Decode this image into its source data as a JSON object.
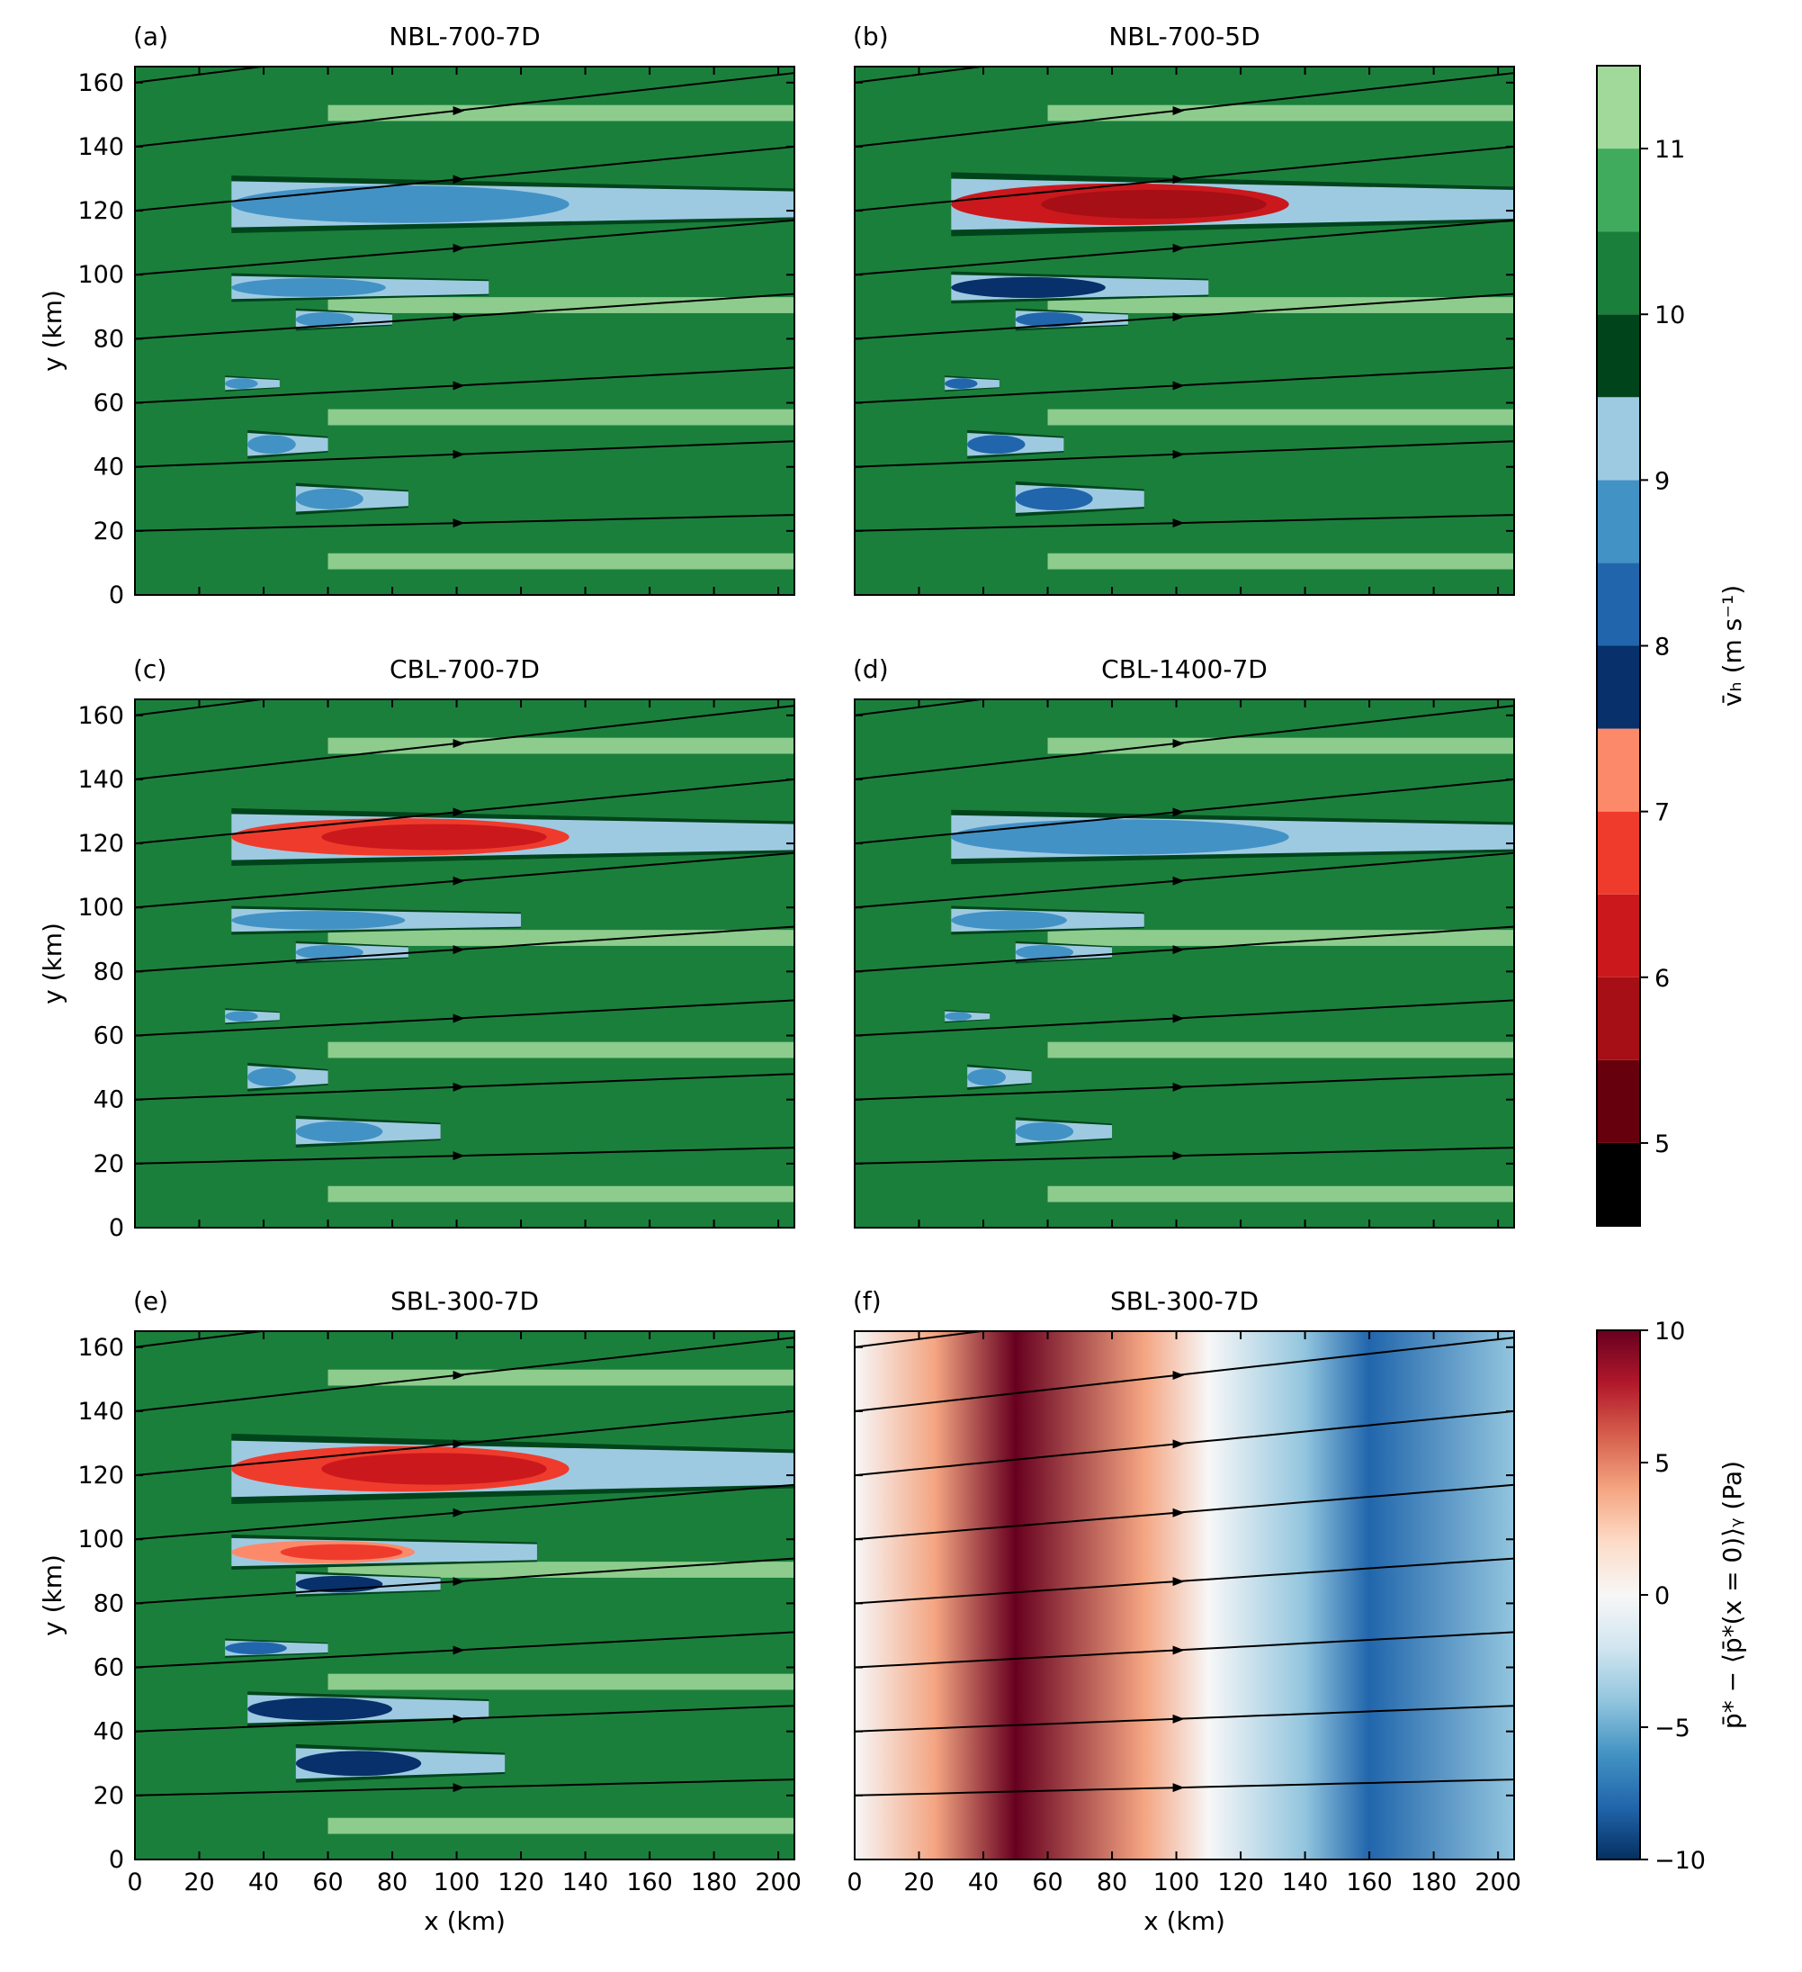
{
  "chart_data": [
    {
      "type": "heatmap",
      "panel": "(a)",
      "title": "NBL-700-7D",
      "xlabel": "",
      "ylabel": "y (km)",
      "xlim": [
        0,
        205
      ],
      "ylim": [
        0,
        165
      ],
      "x_ticks": [
        0,
        20,
        40,
        60,
        80,
        100,
        120,
        140,
        160,
        180,
        200
      ],
      "y_ticks": [
        0,
        20,
        40,
        60,
        80,
        100,
        120,
        140,
        160
      ],
      "background_level": 10,
      "streamline_y0": [
        20,
        40,
        60,
        80,
        100,
        120,
        140,
        160
      ],
      "wake_fields": [
        {
          "x0": 30,
          "x1": 205,
          "y": 122,
          "h": 18,
          "level": 8.8
        },
        {
          "x0": 30,
          "x1": 110,
          "y": 96,
          "h": 9,
          "level": 8.7
        },
        {
          "x0": 50,
          "x1": 80,
          "y": 86,
          "h": 7,
          "level": 8.6
        },
        {
          "x0": 28,
          "x1": 45,
          "y": 66,
          "h": 5,
          "level": 8.7
        },
        {
          "x0": 35,
          "x1": 60,
          "y": 47,
          "h": 9,
          "level": 8.6
        },
        {
          "x0": 50,
          "x1": 85,
          "y": 30,
          "h": 10,
          "level": 8.6
        }
      ]
    },
    {
      "type": "heatmap",
      "panel": "(b)",
      "title": "NBL-700-5D",
      "xlabel": "",
      "ylabel": "",
      "xlim": [
        0,
        205
      ],
      "ylim": [
        0,
        165
      ],
      "x_ticks": [
        0,
        20,
        40,
        60,
        80,
        100,
        120,
        140,
        160,
        180,
        200
      ],
      "y_ticks": [
        0,
        20,
        40,
        60,
        80,
        100,
        120,
        140,
        160
      ],
      "background_level": 10,
      "streamline_y0": [
        20,
        40,
        60,
        80,
        100,
        120,
        140,
        160
      ],
      "wake_fields": [
        {
          "x0": 30,
          "x1": 205,
          "y": 122,
          "h": 20,
          "level": 6.4
        },
        {
          "x0": 30,
          "x1": 110,
          "y": 96,
          "h": 10,
          "level": 7.5
        },
        {
          "x0": 50,
          "x1": 85,
          "y": 86,
          "h": 7,
          "level": 8.0
        },
        {
          "x0": 28,
          "x1": 45,
          "y": 66,
          "h": 5,
          "level": 8.0
        },
        {
          "x0": 35,
          "x1": 65,
          "y": 47,
          "h": 9,
          "level": 8.0
        },
        {
          "x0": 50,
          "x1": 90,
          "y": 30,
          "h": 11,
          "level": 8.0
        }
      ]
    },
    {
      "type": "heatmap",
      "panel": "(c)",
      "title": "CBL-700-7D",
      "xlabel": "",
      "ylabel": "y (km)",
      "xlim": [
        0,
        205
      ],
      "ylim": [
        0,
        165
      ],
      "x_ticks": [
        0,
        20,
        40,
        60,
        80,
        100,
        120,
        140,
        160,
        180,
        200
      ],
      "y_ticks": [
        0,
        20,
        40,
        60,
        80,
        100,
        120,
        140,
        160
      ],
      "background_level": 10,
      "streamline_y0": [
        20,
        40,
        60,
        80,
        100,
        120,
        140,
        160
      ],
      "wake_fields": [
        {
          "x0": 30,
          "x1": 205,
          "y": 122,
          "h": 18,
          "level": 6.8
        },
        {
          "x0": 30,
          "x1": 120,
          "y": 96,
          "h": 9,
          "level": 8.5
        },
        {
          "x0": 50,
          "x1": 85,
          "y": 86,
          "h": 7,
          "level": 8.6
        },
        {
          "x0": 28,
          "x1": 45,
          "y": 66,
          "h": 5,
          "level": 8.7
        },
        {
          "x0": 35,
          "x1": 60,
          "y": 47,
          "h": 9,
          "level": 8.6
        },
        {
          "x0": 50,
          "x1": 95,
          "y": 30,
          "h": 10,
          "level": 8.6
        }
      ]
    },
    {
      "type": "heatmap",
      "panel": "(d)",
      "title": "CBL-1400-7D",
      "xlabel": "",
      "ylabel": "",
      "xlim": [
        0,
        205
      ],
      "ylim": [
        0,
        165
      ],
      "x_ticks": [
        0,
        20,
        40,
        60,
        80,
        100,
        120,
        140,
        160,
        180,
        200
      ],
      "y_ticks": [
        0,
        20,
        40,
        60,
        80,
        100,
        120,
        140,
        160
      ],
      "background_level": 10,
      "streamline_y0": [
        20,
        40,
        60,
        80,
        100,
        120,
        140,
        160
      ],
      "wake_fields": [
        {
          "x0": 30,
          "x1": 205,
          "y": 122,
          "h": 17,
          "level": 8.5
        },
        {
          "x0": 30,
          "x1": 90,
          "y": 96,
          "h": 9,
          "level": 8.6
        },
        {
          "x0": 50,
          "x1": 80,
          "y": 86,
          "h": 7,
          "level": 8.7
        },
        {
          "x0": 28,
          "x1": 42,
          "y": 66,
          "h": 4,
          "level": 8.8
        },
        {
          "x0": 35,
          "x1": 55,
          "y": 47,
          "h": 8,
          "level": 8.7
        },
        {
          "x0": 50,
          "x1": 80,
          "y": 30,
          "h": 9,
          "level": 8.7
        }
      ]
    },
    {
      "type": "heatmap",
      "panel": "(e)",
      "title": "SBL-300-7D",
      "xlabel": "x (km)",
      "ylabel": "y (km)",
      "xlim": [
        0,
        205
      ],
      "ylim": [
        0,
        165
      ],
      "x_ticks": [
        0,
        20,
        40,
        60,
        80,
        100,
        120,
        140,
        160,
        180,
        200
      ],
      "y_ticks": [
        0,
        20,
        40,
        60,
        80,
        100,
        120,
        140,
        160
      ],
      "background_level": 10.2,
      "streamline_y0": [
        20,
        40,
        60,
        80,
        100,
        120,
        140,
        160
      ],
      "wake_fields": [
        {
          "x0": 30,
          "x1": 205,
          "y": 122,
          "h": 22,
          "level": 6.6
        },
        {
          "x0": 30,
          "x1": 125,
          "y": 96,
          "h": 11,
          "level": 7.4
        },
        {
          "x0": 50,
          "x1": 95,
          "y": 86,
          "h": 8,
          "level": 7.6
        },
        {
          "x0": 28,
          "x1": 60,
          "y": 66,
          "h": 6,
          "level": 8.0
        },
        {
          "x0": 35,
          "x1": 110,
          "y": 47,
          "h": 11,
          "level": 7.8
        },
        {
          "x0": 50,
          "x1": 115,
          "y": 30,
          "h": 12,
          "level": 7.8
        }
      ]
    },
    {
      "type": "heatmap",
      "panel": "(f)",
      "title": "SBL-300-7D",
      "xlabel": "x (km)",
      "ylabel": "",
      "xlim": [
        0,
        205
      ],
      "ylim": [
        0,
        165
      ],
      "x_ticks": [
        0,
        20,
        40,
        60,
        80,
        100,
        120,
        140,
        160,
        180,
        200
      ],
      "y_ticks": [
        0,
        20,
        40,
        60,
        80,
        100,
        120,
        140,
        160
      ],
      "pressure_field": {
        "positive_center_x": 50,
        "positive_peak": 9,
        "negative_center_x": 160,
        "negative_peak": -8,
        "zero_crossing_x": 110
      },
      "streamline_y0": [
        20,
        40,
        60,
        80,
        100,
        120,
        140,
        160
      ]
    }
  ],
  "colorbar_vh": {
    "label": "v̄ₕ (m s⁻¹)",
    "tick_values": [
      5,
      6,
      7,
      8,
      9,
      10,
      11
    ],
    "range": [
      4.5,
      11.5
    ],
    "levels": [
      {
        "from": 4.5,
        "to": 5.0,
        "color": "#000000"
      },
      {
        "from": 5.0,
        "to": 5.5,
        "color": "#67000d"
      },
      {
        "from": 5.5,
        "to": 6.0,
        "color": "#a50f15"
      },
      {
        "from": 6.0,
        "to": 6.5,
        "color": "#cb181d"
      },
      {
        "from": 6.5,
        "to": 7.0,
        "color": "#ef3b2c"
      },
      {
        "from": 7.0,
        "to": 7.5,
        "color": "#fc8a6a"
      },
      {
        "from": 7.5,
        "to": 8.0,
        "color": "#08306b"
      },
      {
        "from": 8.0,
        "to": 8.5,
        "color": "#2166ac"
      },
      {
        "from": 8.5,
        "to": 9.0,
        "color": "#4292c6"
      },
      {
        "from": 9.0,
        "to": 9.5,
        "color": "#9ecae1"
      },
      {
        "from": 9.5,
        "to": 10.0,
        "color": "#00441b"
      },
      {
        "from": 10.0,
        "to": 10.5,
        "color": "#1b7f3c"
      },
      {
        "from": 10.5,
        "to": 11.0,
        "color": "#41ab5d"
      },
      {
        "from": 11.0,
        "to": 11.5,
        "color": "#a1d99b"
      },
      {
        "from": 11.5,
        "to": 12.0,
        "color": "#ffffff"
      }
    ]
  },
  "colorbar_p": {
    "label": "p̄* − ⟨p̄*(x = 0)⟩ᵧ (Pa)",
    "tick_values": [
      -10,
      -5,
      0,
      5,
      10
    ],
    "range": [
      -10,
      10
    ],
    "cmap": [
      "#053061",
      "#2166ac",
      "#4393c3",
      "#92c5de",
      "#d1e5f0",
      "#f7f7f7",
      "#fddbc7",
      "#f4a582",
      "#d6604d",
      "#b2182b",
      "#67001f"
    ]
  }
}
